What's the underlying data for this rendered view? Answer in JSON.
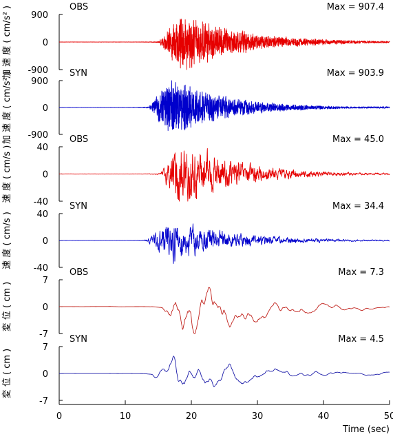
{
  "figure": {
    "xlabel": "Time (sec)",
    "x_ticks": [
      0,
      10,
      20,
      30,
      40,
      50
    ]
  },
  "chart_data": [
    {
      "type": "line",
      "panel": "acceleration-obs",
      "label": "OBS",
      "max_text": "Max = 907.4",
      "ylabel": "加 速 度 ( cm/s² )",
      "ylim": [
        -900,
        900
      ],
      "y_ticks": [
        -900,
        0,
        900
      ],
      "color": "#e60000",
      "onset": 15.0,
      "peak_time": 18.6,
      "peak_value": 907.4,
      "decay": 9.0
    },
    {
      "type": "line",
      "panel": "acceleration-syn",
      "label": "SYN",
      "max_text": "Max = 903.9",
      "ylabel": "加 速 度 ( cm/s² )",
      "ylim": [
        -900,
        900
      ],
      "y_ticks": [
        -900,
        0,
        900
      ],
      "color": "#0000cc",
      "onset": 13.5,
      "peak_time": 17.0,
      "peak_value": 903.9,
      "decay": 8.0
    },
    {
      "type": "line",
      "panel": "velocity-obs",
      "label": "OBS",
      "max_text": "Max = 45.0",
      "ylabel": "速 度 ( cm/s )",
      "ylim": [
        -40,
        40
      ],
      "y_ticks": [
        -40,
        0,
        40
      ],
      "color": "#e60000",
      "onset": 15.3,
      "peak_time": 18.5,
      "peak_value": 45.0,
      "decay": 8.0
    },
    {
      "type": "line",
      "panel": "velocity-syn",
      "label": "SYN",
      "max_text": "Max = 34.4",
      "ylabel": "速 度 ( cm/s )",
      "ylim": [
        -40,
        40
      ],
      "y_ticks": [
        -40,
        0,
        40
      ],
      "color": "#0000cc",
      "onset": 13.0,
      "peak_time": 17.2,
      "peak_value": 34.4,
      "decay": 9.0
    },
    {
      "type": "line",
      "panel": "displacement-obs",
      "label": "OBS",
      "max_text": "Max = 7.3",
      "ylabel": "変 位 ( cm )",
      "ylim": [
        -7,
        7
      ],
      "y_ticks": [
        -7,
        0,
        7
      ],
      "color": "#c0201a",
      "onset": 15.5,
      "peak_time": 18.9,
      "peak_value": 7.3,
      "decay": 10.0
    },
    {
      "type": "line",
      "panel": "displacement-syn",
      "label": "SYN",
      "max_text": "Max = 4.5",
      "ylabel": "変 位 ( cm )",
      "ylim": [
        -7,
        7
      ],
      "y_ticks": [
        -7,
        0,
        7
      ],
      "color": "#1a1aa8",
      "onset": 14.0,
      "peak_time": 17.8,
      "peak_value": 4.5,
      "decay": 11.0
    }
  ]
}
